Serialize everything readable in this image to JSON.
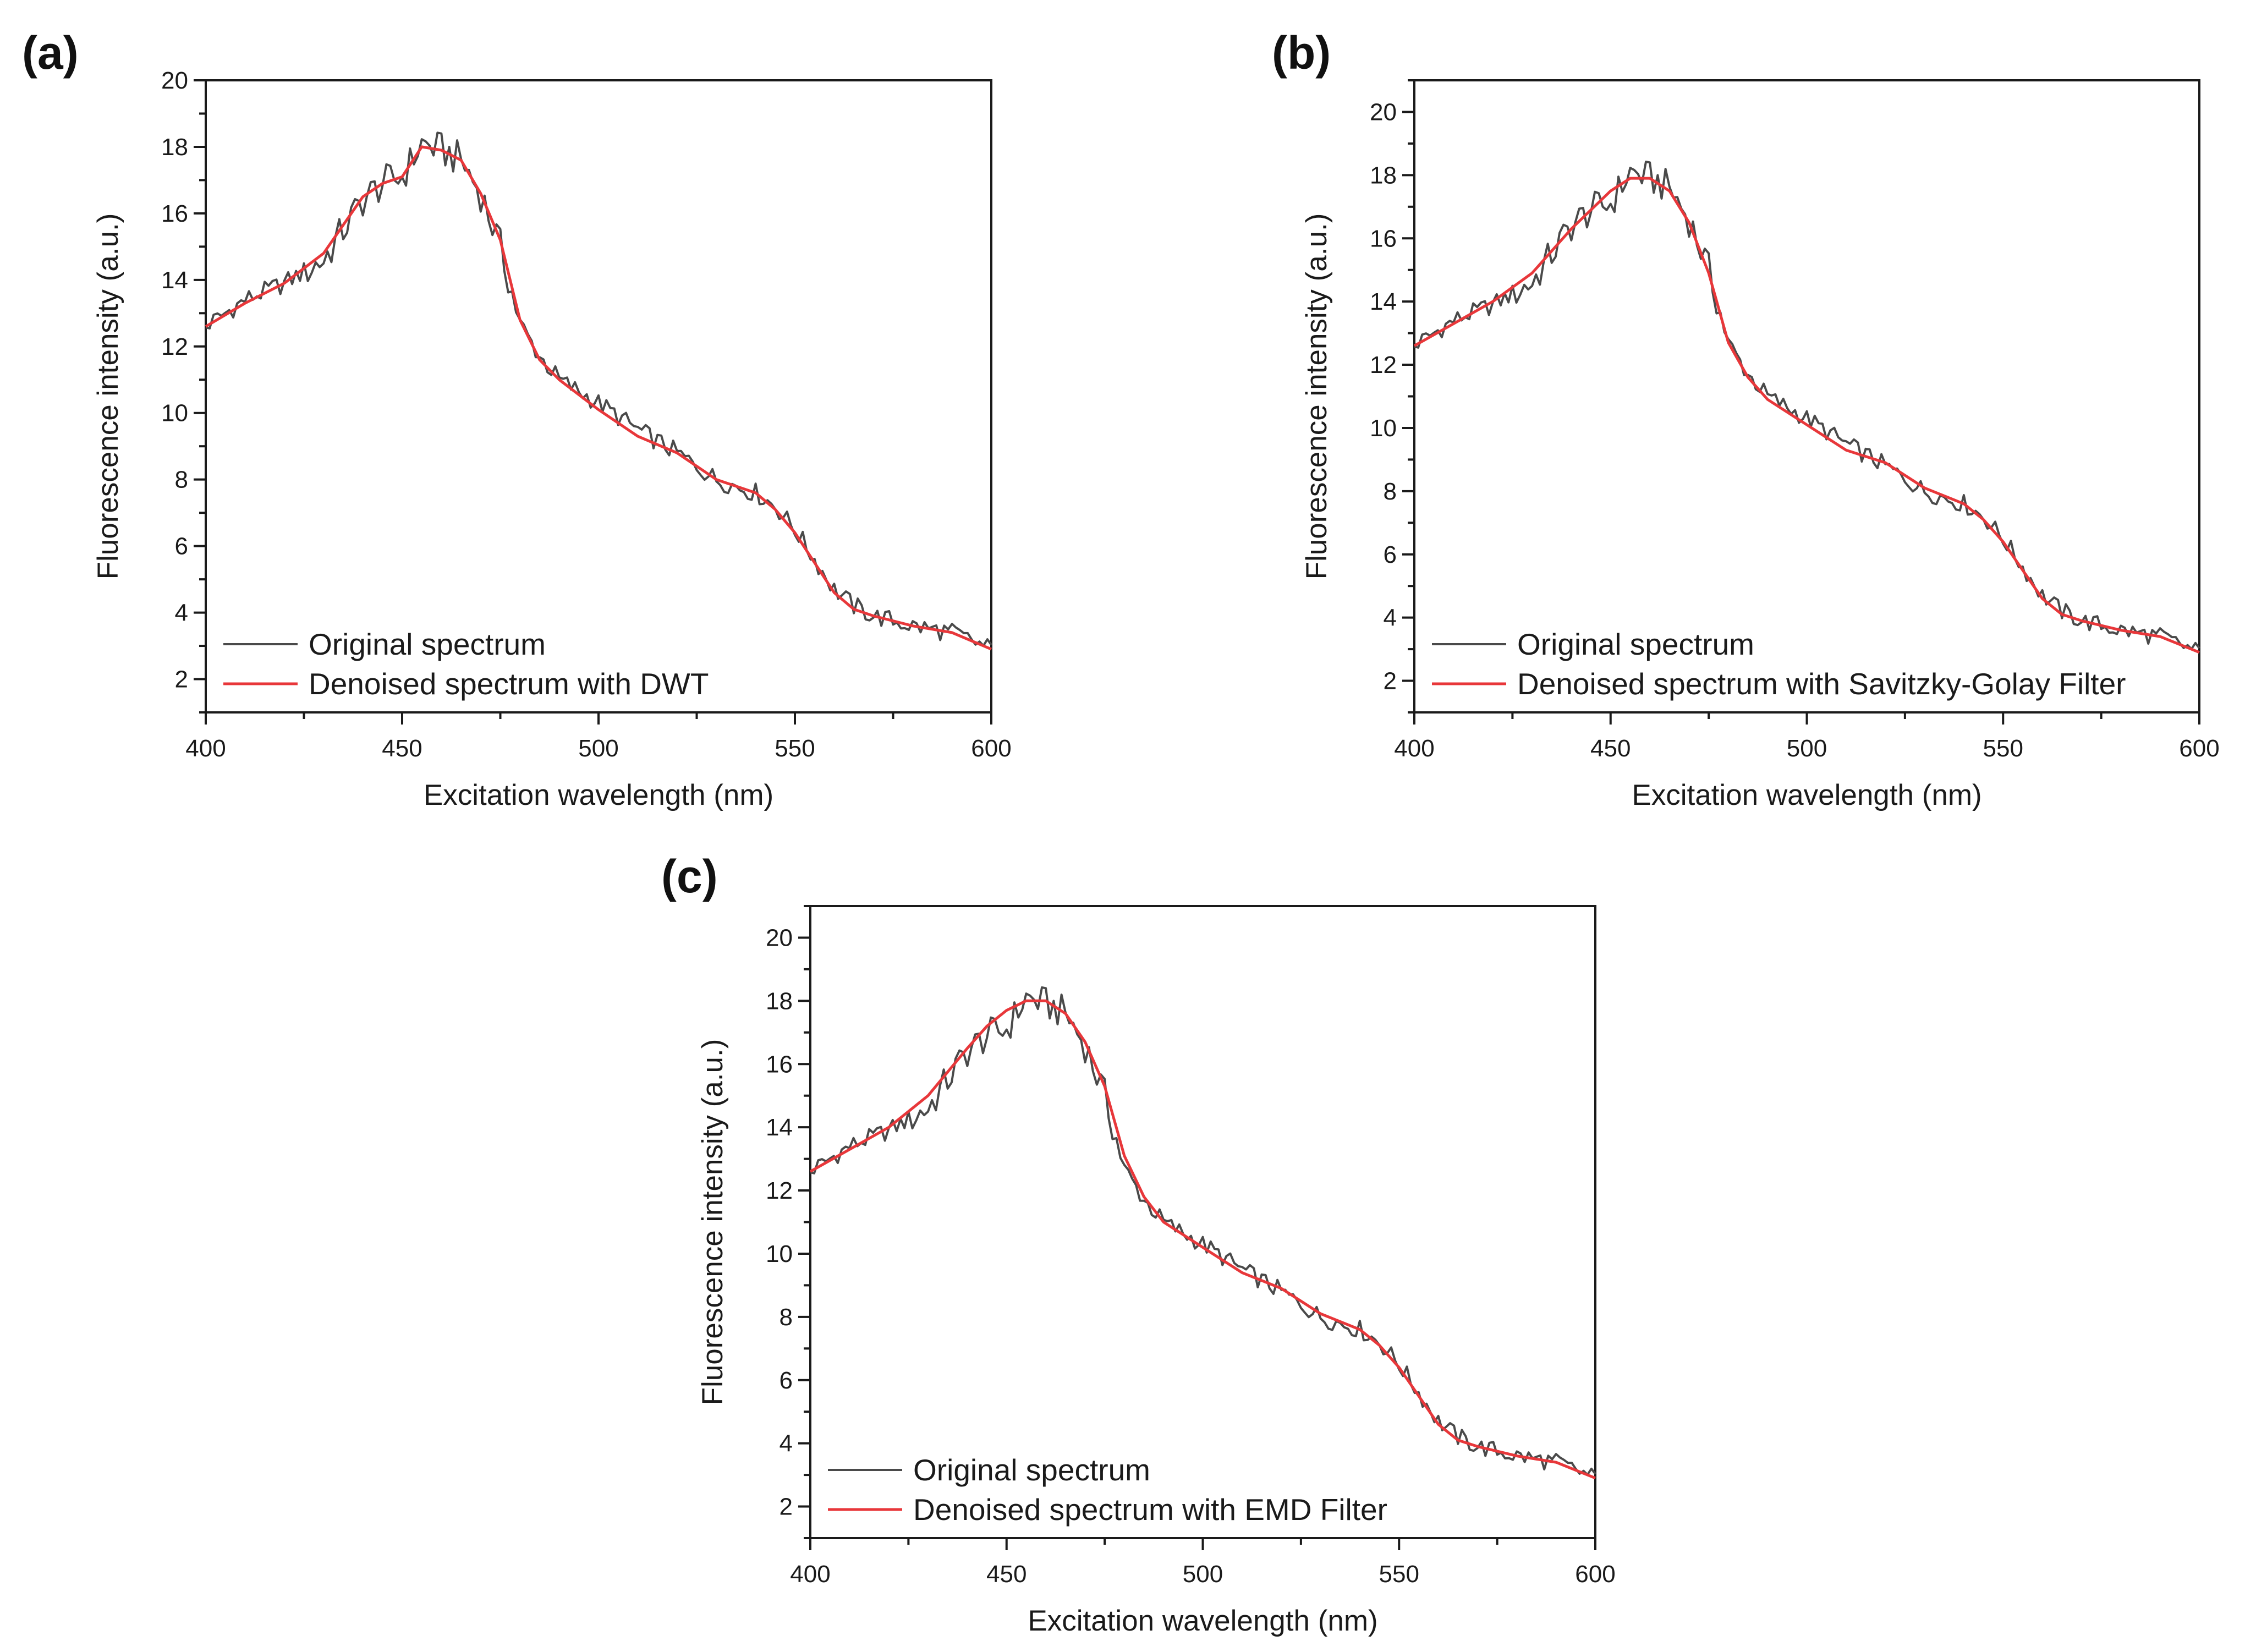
{
  "figure": {
    "panel_labels": [
      "(a)",
      "(b)",
      "(c)"
    ]
  },
  "colors": {
    "original": "#4a4a4a",
    "denoised": "#e8373a",
    "axis": "#1a1a1a"
  },
  "chart_data": [
    {
      "panel": "(a)",
      "type": "line",
      "title": "",
      "xlabel": "Excitation wavelength (nm)",
      "ylabel": "Fluorescence intensity (a.u.)",
      "xlim": [
        400,
        600
      ],
      "ylim": [
        1,
        20
      ],
      "xticks": [
        400,
        450,
        500,
        550,
        600
      ],
      "yticks": [
        2,
        4,
        6,
        8,
        10,
        12,
        14,
        16,
        18,
        20
      ],
      "legend_position": "bottom-left",
      "x": [
        400,
        410,
        420,
        430,
        440,
        445,
        450,
        455,
        460,
        465,
        470,
        475,
        480,
        485,
        490,
        500,
        510,
        520,
        530,
        540,
        545,
        550,
        555,
        560,
        565,
        570,
        580,
        590,
        600
      ],
      "series": [
        {
          "name": "Original spectrum",
          "values": [
            12.6,
            13.4,
            13.9,
            14.6,
            16.4,
            16.9,
            17.1,
            18.1,
            17.9,
            17.6,
            16.6,
            15.0,
            12.7,
            11.7,
            11.0,
            10.3,
            9.5,
            8.8,
            8.0,
            7.6,
            7.2,
            6.5,
            5.6,
            4.7,
            4.2,
            3.9,
            3.6,
            3.4,
            2.9
          ]
        },
        {
          "name": "Denoised spectrum with DWT",
          "values": [
            12.6,
            13.3,
            13.9,
            14.8,
            16.5,
            16.9,
            17.1,
            18.0,
            17.9,
            17.6,
            16.6,
            15.2,
            12.8,
            11.6,
            11.0,
            10.1,
            9.3,
            8.8,
            8.0,
            7.6,
            7.1,
            6.4,
            5.5,
            4.6,
            4.1,
            3.9,
            3.6,
            3.4,
            2.9
          ]
        }
      ]
    },
    {
      "panel": "(b)",
      "type": "line",
      "title": "",
      "xlabel": "Excitation wavelength (nm)",
      "ylabel": "Fluorescence intensity (a.u.)",
      "xlim": [
        400,
        600
      ],
      "ylim": [
        1,
        21
      ],
      "xticks": [
        400,
        450,
        500,
        550,
        600
      ],
      "yticks": [
        2,
        4,
        6,
        8,
        10,
        12,
        14,
        16,
        18,
        20
      ],
      "legend_position": "bottom-left",
      "x": [
        400,
        410,
        420,
        430,
        440,
        445,
        450,
        455,
        460,
        465,
        470,
        475,
        480,
        485,
        490,
        500,
        510,
        520,
        530,
        540,
        545,
        550,
        555,
        560,
        565,
        570,
        580,
        590,
        600
      ],
      "series": [
        {
          "name": "Original spectrum",
          "values": [
            12.6,
            13.4,
            13.9,
            14.6,
            16.4,
            16.9,
            17.1,
            18.1,
            17.9,
            17.6,
            16.6,
            15.0,
            12.7,
            11.7,
            11.0,
            10.3,
            9.5,
            8.8,
            8.0,
            7.6,
            7.2,
            6.5,
            5.6,
            4.7,
            4.2,
            3.9,
            3.6,
            3.4,
            2.9
          ]
        },
        {
          "name": "Denoised spectrum with Savitzky-Golay Filter",
          "values": [
            12.6,
            13.3,
            14.0,
            14.9,
            16.3,
            16.9,
            17.5,
            17.9,
            17.9,
            17.5,
            16.5,
            14.9,
            12.7,
            11.6,
            10.9,
            10.1,
            9.3,
            8.9,
            8.1,
            7.6,
            7.1,
            6.4,
            5.5,
            4.6,
            4.1,
            3.9,
            3.6,
            3.4,
            2.9
          ]
        }
      ]
    },
    {
      "panel": "(c)",
      "type": "line",
      "title": "",
      "xlabel": "Excitation wavelength (nm)",
      "ylabel": "Fluorescence intensity (a.u.)",
      "xlim": [
        400,
        600
      ],
      "ylim": [
        1,
        21
      ],
      "xticks": [
        400,
        450,
        500,
        550,
        600
      ],
      "yticks": [
        2,
        4,
        6,
        8,
        10,
        12,
        14,
        16,
        18,
        20
      ],
      "legend_position": "bottom-left",
      "x": [
        400,
        410,
        420,
        430,
        440,
        445,
        450,
        455,
        460,
        465,
        470,
        475,
        480,
        485,
        490,
        500,
        510,
        520,
        530,
        540,
        545,
        550,
        555,
        560,
        565,
        570,
        580,
        590,
        600
      ],
      "series": [
        {
          "name": "Original spectrum",
          "values": [
            12.6,
            13.4,
            13.9,
            14.6,
            16.4,
            16.9,
            17.1,
            18.1,
            17.9,
            17.6,
            16.6,
            15.0,
            12.7,
            11.7,
            11.0,
            10.3,
            9.5,
            8.8,
            8.0,
            7.6,
            7.2,
            6.5,
            5.6,
            4.7,
            4.2,
            3.9,
            3.6,
            3.4,
            2.9
          ]
        },
        {
          "name": "Denoised spectrum with EMD Filter",
          "values": [
            12.6,
            13.3,
            14.0,
            15.0,
            16.5,
            17.2,
            17.7,
            18.0,
            18.0,
            17.6,
            16.7,
            15.3,
            13.1,
            11.8,
            11.0,
            10.2,
            9.4,
            8.9,
            8.1,
            7.6,
            7.1,
            6.4,
            5.5,
            4.6,
            4.1,
            3.9,
            3.6,
            3.4,
            2.9
          ]
        }
      ]
    }
  ]
}
